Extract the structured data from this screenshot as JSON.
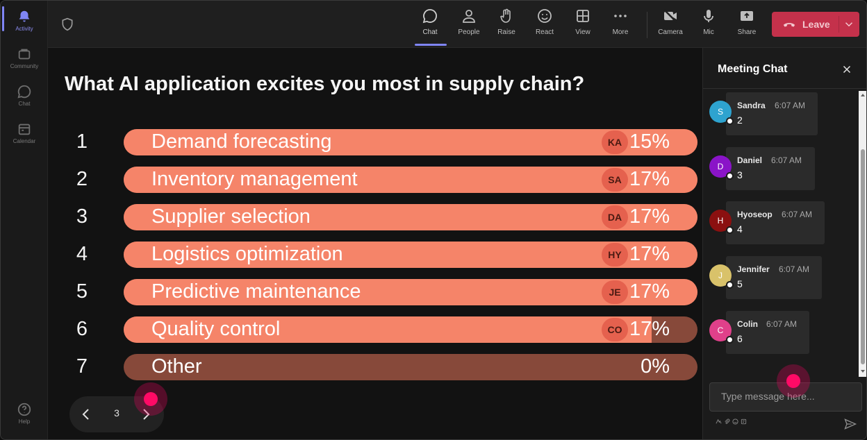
{
  "rail": {
    "items": [
      {
        "label": "Activity",
        "icon": "bell-icon",
        "active": true
      },
      {
        "label": "Community",
        "icon": "community-icon",
        "active": false
      },
      {
        "label": "Chat",
        "icon": "chat-icon",
        "active": false
      },
      {
        "label": "Calendar",
        "icon": "calendar-icon",
        "active": false
      }
    ],
    "help": {
      "label": "Help",
      "icon": "help-icon"
    }
  },
  "toolbar": {
    "buttons": [
      {
        "label": "Chat",
        "icon": "chat-icon",
        "active": true
      },
      {
        "label": "People",
        "icon": "people-icon"
      },
      {
        "label": "Raise",
        "icon": "raise-hand-icon"
      },
      {
        "label": "React",
        "icon": "emoji-icon"
      },
      {
        "label": "View",
        "icon": "grid-icon"
      },
      {
        "label": "More",
        "icon": "more-icon"
      },
      {
        "label": "Camera",
        "icon": "camera-off-icon"
      },
      {
        "label": "Mic",
        "icon": "mic-icon"
      },
      {
        "label": "Share",
        "icon": "share-icon"
      }
    ],
    "leave_label": "Leave",
    "leave_color": "#c4314b"
  },
  "poll": {
    "question": "What AI application excites you most in supply chain?",
    "bar_color": "#f58469",
    "track_color": "#87493a",
    "options": [
      {
        "num": "1",
        "label": "Demand forecasting",
        "badge": "KA",
        "pct": "15%",
        "fill": 1.0
      },
      {
        "num": "2",
        "label": "Inventory management",
        "badge": "SA",
        "pct": "17%",
        "fill": 1.0
      },
      {
        "num": "3",
        "label": "Supplier selection",
        "badge": "DA",
        "pct": "17%",
        "fill": 1.0
      },
      {
        "num": "4",
        "label": "Logistics optimization",
        "badge": "HY",
        "pct": "17%",
        "fill": 1.0
      },
      {
        "num": "5",
        "label": "Predictive maintenance",
        "badge": "JE",
        "pct": "17%",
        "fill": 1.0
      },
      {
        "num": "6",
        "label": "Quality control",
        "badge": "CO",
        "pct": "17%",
        "fill": 0.92
      },
      {
        "num": "7",
        "label": "Other",
        "badge": "",
        "pct": "0%",
        "fill": 0.0
      }
    ]
  },
  "pager": {
    "page": "3"
  },
  "chat": {
    "title": "Meeting Chat",
    "messages": [
      {
        "initial": "S",
        "name": "Sandra",
        "time": "6:07 AM",
        "text": "2",
        "color": "#2ea3cf"
      },
      {
        "initial": "D",
        "name": "Daniel",
        "time": "6:07 AM",
        "text": "3",
        "color": "#8a14c8"
      },
      {
        "initial": "H",
        "name": "Hyoseop",
        "time": "6:07 AM",
        "text": "4",
        "color": "#8b1010"
      },
      {
        "initial": "J",
        "name": "Jennifer",
        "time": "6:07 AM",
        "text": "5",
        "color": "#d9c26a"
      },
      {
        "initial": "C",
        "name": "Colin",
        "time": "6:07 AM",
        "text": "6",
        "color": "#e0408a"
      }
    ],
    "compose_placeholder": "Type message here..."
  }
}
